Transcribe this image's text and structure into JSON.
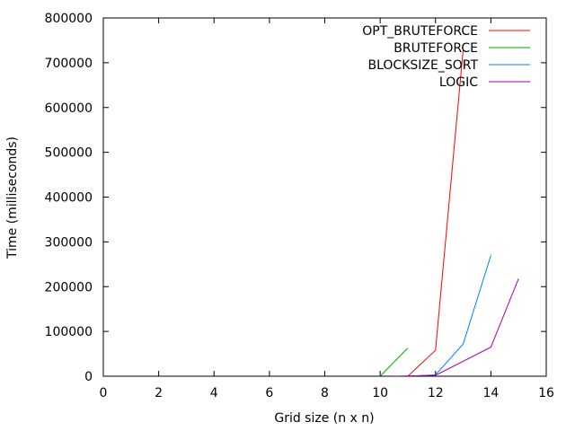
{
  "chart_data": {
    "type": "line",
    "title": "",
    "xlabel": "Grid size (n x n)",
    "ylabel": "Time (milliseconds)",
    "xlim": [
      0,
      16
    ],
    "ylim": [
      0,
      800000
    ],
    "xticks": [
      0,
      2,
      4,
      6,
      8,
      10,
      12,
      14,
      16
    ],
    "yticks": [
      0,
      100000,
      200000,
      300000,
      400000,
      500000,
      600000,
      700000,
      800000
    ],
    "xtick_labels": [
      "0",
      "2",
      "4",
      "6",
      "8",
      "10",
      "12",
      "14",
      "16"
    ],
    "ytick_labels": [
      "0",
      "100000",
      "200000",
      "300000",
      "400000",
      "500000",
      "600000",
      "700000",
      "800000"
    ],
    "grid": false,
    "legend_position": "top-right",
    "series": [
      {
        "name": "OPT_BRUTEFORCE",
        "color": "#ff0000",
        "points": [
          [
            11,
            0
          ],
          [
            12,
            58000
          ],
          [
            13,
            730000
          ]
        ]
      },
      {
        "name": "BRUTEFORCE",
        "color": "#00a000",
        "points": [
          [
            10,
            0
          ],
          [
            11,
            63000
          ]
        ]
      },
      {
        "name": "BLOCKSIZE_SORT",
        "color": "#0080ff",
        "points": [
          [
            11,
            0
          ],
          [
            12,
            3000
          ],
          [
            13,
            72000
          ],
          [
            14,
            270000
          ]
        ]
      },
      {
        "name": "LOGIC",
        "color": "#a000a0",
        "points": [
          [
            10.5,
            0
          ],
          [
            12,
            2000
          ],
          [
            14,
            65000
          ],
          [
            15,
            218000
          ]
        ]
      }
    ]
  }
}
